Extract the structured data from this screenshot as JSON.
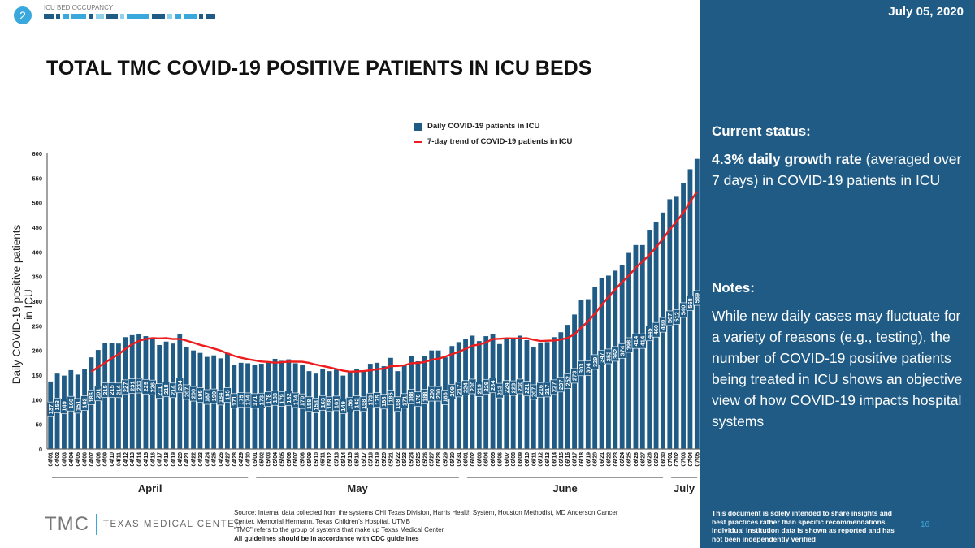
{
  "header": {
    "section_number": "2",
    "section_title": "ICU BED OCCUPANCY",
    "date": "July 05, 2020"
  },
  "title": "TOTAL TMC COVID-19 POSITIVE PATIENTS IN ICU BEDS",
  "side": {
    "status_heading": "Current status:",
    "status_bold": "4.3% daily growth rate",
    "status_rest": " (averaged over 7 days) in COVID-19 patients in ICU",
    "notes_heading": "Notes:",
    "notes_text": "While new daily cases may fluctuate for a variety of reasons (e.g., testing), the number of COVID-19 positive patients being treated in ICU shows an objective view of how COVID-19 impacts hospital systems",
    "disclaimer": "This document is solely intended to share insights and best practices rather than specific recommendations. Individual institution data is shown as reported and has not been independently verified",
    "page_number": "16"
  },
  "footer": {
    "logo_abbr": "TMC",
    "logo_name": "TEXAS MEDICAL CENTER",
    "source_1": "Source: Internal data collected from the systems CHI Texas Division, Harris Health System, Houston Methodist, MD Anderson Cancer Center, Memorial Hermann, Texas Children's Hospital, UTMB",
    "source_2": "“TMC” refers to the group of systems that make up Texas Medical Center",
    "source_3": "All guidelines should be in accordance with CDC guidelines"
  },
  "colors": {
    "bar": "#1f5b85",
    "trend": "#ee1c1c",
    "side": "#1f5b85",
    "accent": "#3aa8dd"
  },
  "chart_data": {
    "type": "bar",
    "ylabel": "Daily COVID-19 positive patients in ICU",
    "ylim": [
      0,
      600
    ],
    "yticks": [
      0,
      50,
      100,
      150,
      200,
      250,
      300,
      350,
      400,
      450,
      500,
      550,
      600
    ],
    "legend": [
      "Daily COVID-19 patients in ICU",
      "7-day trend of COVID-19 patients in ICU"
    ],
    "legend_position": "top-center",
    "months": [
      {
        "label": "April",
        "count": 30,
        "prefix": "04"
      },
      {
        "label": "May",
        "count": 31,
        "prefix": "05"
      },
      {
        "label": "June",
        "count": 30,
        "prefix": "06"
      },
      {
        "label": "July",
        "count": 5,
        "prefix": "07"
      }
    ],
    "values": [
      137,
      153,
      149,
      160,
      151,
      162,
      186,
      201,
      215,
      215,
      214,
      227,
      231,
      233,
      229,
      226,
      211,
      218,
      214,
      234,
      207,
      200,
      195,
      187,
      190,
      184,
      195,
      171,
      175,
      174,
      171,
      173,
      178,
      183,
      179,
      182,
      174,
      170,
      158,
      153,
      163,
      158,
      161,
      149,
      156,
      162,
      158,
      173,
      175,
      168,
      185,
      158,
      171,
      188,
      178,
      188,
      200,
      200,
      186,
      209,
      217,
      224,
      230,
      219,
      229,
      234,
      213,
      224,
      223,
      230,
      221,
      207,
      216,
      217,
      227,
      237,
      252,
      273,
      303,
      304,
      329,
      347,
      352,
      362,
      374,
      398,
      414,
      414,
      445,
      460,
      480,
      507,
      512,
      540,
      568,
      589
    ],
    "trend": "7-day moving average of values"
  }
}
